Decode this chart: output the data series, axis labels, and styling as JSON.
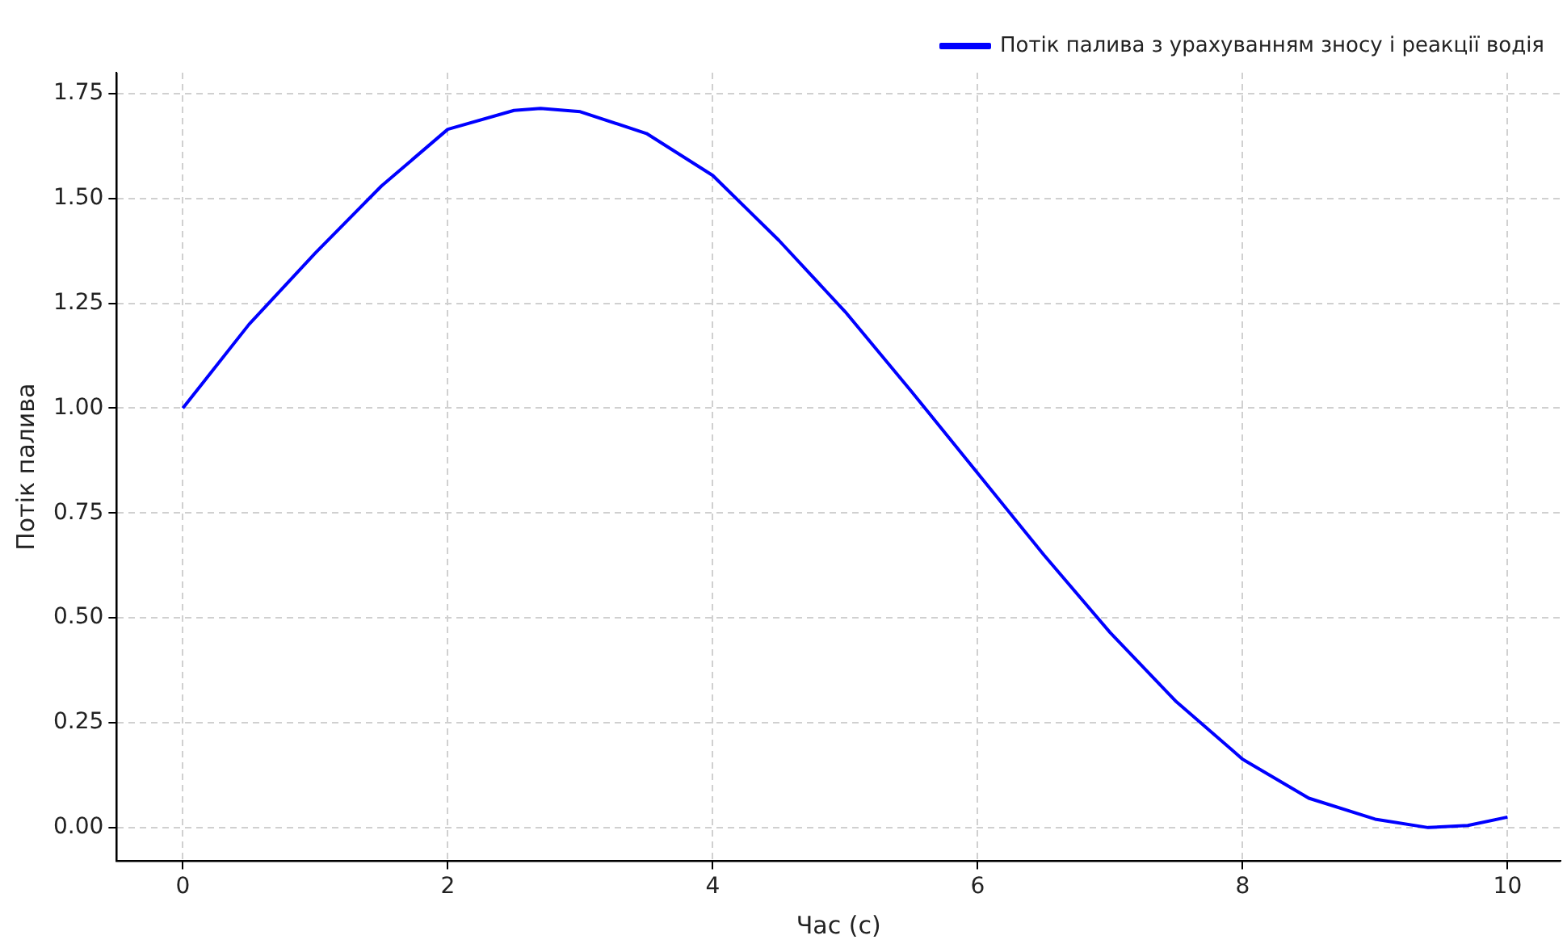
{
  "chart_data": {
    "type": "line",
    "xlabel": "Час (с)",
    "ylabel": "Потік палива",
    "x": [
      0,
      0.5,
      1,
      1.5,
      2,
      2.5,
      2.7,
      3,
      3.5,
      4,
      4.5,
      5,
      5.5,
      6,
      6.5,
      7,
      7.5,
      8,
      8.5,
      9,
      9.4,
      9.7,
      10
    ],
    "series": [
      {
        "name": "Потік палива з урахуванням зносу і реакції водія",
        "color": "#0000ff",
        "values": [
          1.0,
          1.2,
          1.37,
          1.53,
          1.665,
          1.71,
          1.715,
          1.707,
          1.655,
          1.555,
          1.4,
          1.23,
          1.04,
          0.845,
          0.65,
          0.465,
          0.3,
          0.163,
          0.07,
          0.02,
          0.0,
          0.005,
          0.025
        ]
      }
    ],
    "xlim": [
      -0.5,
      10.4
    ],
    "xticks": [
      0,
      2,
      4,
      6,
      8,
      10
    ],
    "ylim": [
      -0.08,
      1.8
    ],
    "yticks": [
      {
        "value": 0,
        "label": "0.00"
      },
      {
        "value": 0.25,
        "label": "0.25"
      },
      {
        "value": 0.5,
        "label": "0.50"
      },
      {
        "value": 0.75,
        "label": "0.75"
      },
      {
        "value": 1,
        "label": "1.00"
      },
      {
        "value": 1.25,
        "label": "1.25"
      },
      {
        "value": 1.5,
        "label": "1.50"
      },
      {
        "value": 1.75,
        "label": "1.75"
      }
    ],
    "grid": true,
    "legend": "top right",
    "marker": "none",
    "line_style": "solid"
  }
}
